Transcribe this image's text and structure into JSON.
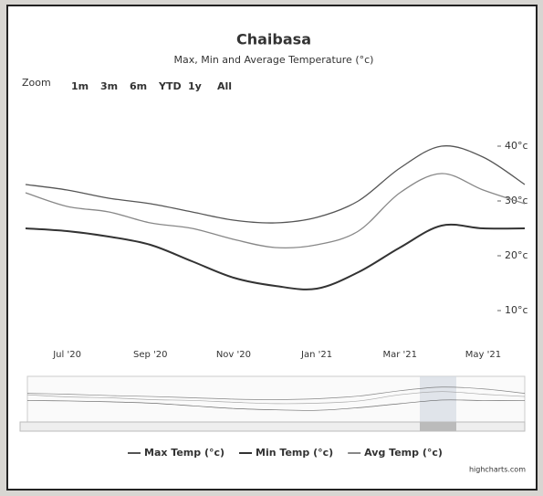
{
  "chart_data": {
    "type": "line",
    "title": "Chaibasa",
    "subtitle": "Max, Min and Average Temperature (°c)",
    "categories": [
      null,
      "Jul '20",
      null,
      "Sep '20",
      null,
      "Nov '20",
      null,
      "Jan '21",
      null,
      "Mar '21",
      null,
      "May '21",
      null
    ],
    "series": [
      {
        "name": "Max Temp (°c)",
        "color": "#555555",
        "values": [
          33,
          32,
          30.5,
          29.5,
          28,
          26.5,
          26,
          27,
          30,
          36,
          40,
          38,
          33
        ]
      },
      {
        "name": "Min Temp (°c)",
        "color": "#333333",
        "values": [
          25,
          24.5,
          23.5,
          22,
          19,
          16,
          14.5,
          14,
          17,
          21.5,
          25.5,
          25,
          25
        ]
      },
      {
        "name": "Avg Temp (°c)",
        "color": "#888888",
        "values": [
          31.5,
          29,
          28,
          26,
          25,
          23,
          21.5,
          22,
          24.5,
          31.5,
          35,
          32,
          29.5
        ]
      }
    ],
    "ylim": [
      5,
      50
    ],
    "yticks": [
      {
        "value": 10,
        "label": "10°c"
      },
      {
        "value": 20,
        "label": "20°c"
      },
      {
        "value": 30,
        "label": "30°c"
      },
      {
        "value": 40,
        "label": "40°c"
      }
    ],
    "grid": false,
    "legend": "bottom",
    "credits": "highcharts.com"
  },
  "range_selector": {
    "label": "Zoom",
    "buttons": [
      "1m",
      "3m",
      "6m",
      "YTD",
      "1y",
      "All"
    ],
    "disabled": [
      true,
      true,
      false,
      false,
      false,
      false
    ]
  }
}
